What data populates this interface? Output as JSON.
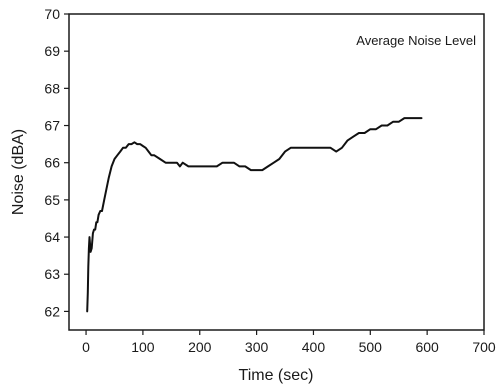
{
  "chart_data": {
    "type": "line",
    "xlabel": "Time (sec)",
    "ylabel": "Noise (dBA)",
    "annotation": "Average Noise Level",
    "xlim": [
      -30,
      700
    ],
    "ylim": [
      61.5,
      70
    ],
    "xticks": [
      0,
      100,
      200,
      300,
      400,
      500,
      600,
      700
    ],
    "yticks": [
      62,
      63,
      64,
      65,
      66,
      67,
      68,
      69,
      70
    ],
    "grid": false,
    "line_color": "#111111",
    "series": [
      {
        "x": [
          2,
          3,
          4,
          5,
          6,
          8,
          10,
          12,
          14,
          16,
          18,
          20,
          22,
          25,
          28,
          32,
          36,
          40,
          45,
          50,
          55,
          60,
          65,
          70,
          75,
          80,
          85,
          90,
          95,
          100,
          105,
          110,
          115,
          120,
          130,
          140,
          150,
          160,
          165,
          170,
          180,
          190,
          200,
          210,
          220,
          230,
          240,
          250,
          260,
          270,
          280,
          290,
          300,
          310,
          320,
          330,
          340,
          350,
          360,
          370,
          380,
          390,
          400,
          410,
          420,
          430,
          440,
          450,
          460,
          470,
          480,
          490,
          500,
          510,
          520,
          530,
          540,
          550,
          560,
          570,
          580,
          590
        ],
        "y": [
          62.0,
          62.5,
          63.2,
          63.7,
          64.0,
          63.6,
          63.7,
          64.1,
          64.2,
          64.2,
          64.4,
          64.4,
          64.6,
          64.7,
          64.7,
          65.0,
          65.3,
          65.6,
          65.9,
          66.1,
          66.2,
          66.3,
          66.4,
          66.4,
          66.5,
          66.5,
          66.55,
          66.5,
          66.5,
          66.45,
          66.4,
          66.3,
          66.2,
          66.2,
          66.1,
          66.0,
          66.0,
          66.0,
          65.9,
          66.0,
          65.9,
          65.9,
          65.9,
          65.9,
          65.9,
          65.9,
          66.0,
          66.0,
          66.0,
          65.9,
          65.9,
          65.8,
          65.8,
          65.8,
          65.9,
          66.0,
          66.1,
          66.3,
          66.4,
          66.4,
          66.4,
          66.4,
          66.4,
          66.4,
          66.4,
          66.4,
          66.3,
          66.4,
          66.6,
          66.7,
          66.8,
          66.8,
          66.9,
          66.9,
          67.0,
          67.0,
          67.1,
          67.1,
          67.2,
          67.2,
          67.2,
          67.2
        ]
      }
    ]
  }
}
